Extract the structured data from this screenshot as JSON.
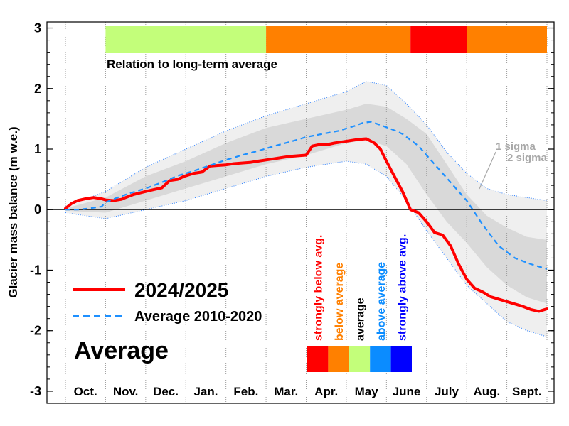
{
  "chart_data": {
    "type": "line",
    "ylabel": "Glacier mass balance (m w.e.)",
    "ylim": [
      -3.2,
      3.1
    ],
    "yticks": [
      -3,
      -2,
      -1,
      0,
      1,
      2,
      3
    ],
    "ytick_labels": [
      "-3",
      "-2",
      "-1",
      "0",
      "1",
      "2",
      "3"
    ],
    "xlim": [
      0,
      12
    ],
    "months": [
      "Oct.",
      "Nov.",
      "Dec.",
      "Jan.",
      "Feb.",
      "Mar.",
      "Apr.",
      "May",
      "June",
      "July",
      "Aug.",
      "Sept."
    ],
    "series": [
      {
        "name": "2024/2025",
        "color": "#ff0000",
        "style": "solid",
        "x": [
          0.0,
          0.15,
          0.3,
          0.5,
          0.7,
          0.9,
          1.0,
          1.2,
          1.4,
          1.5,
          1.7,
          2.0,
          2.2,
          2.4,
          2.6,
          2.8,
          2.95,
          3.2,
          3.4,
          3.6,
          3.8,
          4.0,
          4.2,
          4.4,
          4.6,
          4.8,
          5.0,
          5.2,
          5.4,
          5.6,
          5.8,
          6.0,
          6.15,
          6.3,
          6.5,
          6.7,
          6.9,
          7.1,
          7.3,
          7.5,
          7.7,
          7.85,
          8.0,
          8.2,
          8.4,
          8.6,
          8.8,
          9.0,
          9.2,
          9.4,
          9.6,
          9.8,
          10.0,
          10.2,
          10.4,
          10.6,
          10.8,
          11.0,
          11.2,
          11.4,
          11.6,
          11.8,
          12.0
        ],
        "y": [
          0.02,
          0.1,
          0.15,
          0.18,
          0.2,
          0.18,
          0.16,
          0.15,
          0.17,
          0.2,
          0.25,
          0.3,
          0.33,
          0.36,
          0.48,
          0.5,
          0.55,
          0.6,
          0.62,
          0.72,
          0.73,
          0.74,
          0.76,
          0.77,
          0.78,
          0.8,
          0.82,
          0.84,
          0.86,
          0.88,
          0.89,
          0.9,
          1.05,
          1.07,
          1.07,
          1.1,
          1.12,
          1.14,
          1.16,
          1.17,
          1.1,
          1.0,
          0.8,
          0.55,
          0.3,
          0.0,
          -0.05,
          -0.2,
          -0.38,
          -0.42,
          -0.6,
          -0.9,
          -1.15,
          -1.3,
          -1.36,
          -1.44,
          -1.48,
          -1.52,
          -1.56,
          -1.6,
          -1.65,
          -1.68,
          -1.64
        ]
      },
      {
        "name": "Average 2010-2020",
        "color": "#1e90ff",
        "style": "dashed",
        "x": [
          0.0,
          0.3,
          0.6,
          0.9,
          1.0,
          1.3,
          1.6,
          2.0,
          2.4,
          2.8,
          3.2,
          3.6,
          4.0,
          4.4,
          4.8,
          5.2,
          5.6,
          6.0,
          6.4,
          6.8,
          7.2,
          7.4,
          7.6,
          7.8,
          8.0,
          8.2,
          8.4,
          8.8,
          9.2,
          9.6,
          10.0,
          10.4,
          10.8,
          11.2,
          11.6,
          12.0
        ],
        "y": [
          0.0,
          0.0,
          0.02,
          0.05,
          0.12,
          0.2,
          0.27,
          0.35,
          0.45,
          0.56,
          0.64,
          0.73,
          0.82,
          0.9,
          0.97,
          1.05,
          1.12,
          1.2,
          1.25,
          1.3,
          1.38,
          1.43,
          1.45,
          1.41,
          1.36,
          1.31,
          1.25,
          1.05,
          0.75,
          0.45,
          0.15,
          -0.25,
          -0.6,
          -0.8,
          -0.9,
          -0.98
        ]
      }
    ],
    "bands": {
      "x": [
        0.0,
        1.0,
        2.0,
        3.0,
        4.0,
        5.0,
        6.0,
        7.0,
        7.5,
        8.0,
        8.5,
        9.0,
        9.5,
        10.0,
        10.5,
        11.0,
        11.5,
        12.0
      ],
      "sigma2_upper": [
        0.05,
        0.3,
        0.7,
        1.0,
        1.3,
        1.55,
        1.75,
        1.95,
        2.12,
        2.05,
        1.75,
        1.4,
        0.95,
        0.6,
        0.35,
        0.25,
        0.2,
        0.15
      ],
      "sigma1_upper": [
        0.02,
        0.2,
        0.55,
        0.8,
        1.1,
        1.35,
        1.5,
        1.65,
        1.75,
        1.7,
        1.5,
        1.25,
        0.75,
        0.25,
        -0.1,
        -0.3,
        -0.45,
        -0.5
      ],
      "sigma1_lower": [
        -0.02,
        -0.05,
        0.15,
        0.35,
        0.55,
        0.75,
        0.9,
        1.1,
        1.15,
        1.05,
        0.75,
        0.25,
        -0.2,
        -0.55,
        -0.95,
        -1.25,
        -1.45,
        -1.55
      ],
      "sigma2_lower": [
        -0.05,
        -0.15,
        0.0,
        0.15,
        0.35,
        0.55,
        0.7,
        0.8,
        0.75,
        0.55,
        0.15,
        -0.35,
        -0.8,
        -1.25,
        -1.55,
        -1.85,
        -2.0,
        -2.1
      ],
      "sigma1_label": "1 sigma",
      "sigma2_label": "2 sigma",
      "color_outer": "#efefef",
      "color_inner": "#d9d9d9"
    },
    "relation_bar": {
      "label": "Relation to long-term average",
      "segments": [
        {
          "from": 1.0,
          "to": 5.0,
          "color": "#c3fe7a"
        },
        {
          "from": 5.0,
          "to": 8.6,
          "color": "#ff8000"
        },
        {
          "from": 8.6,
          "to": 10.0,
          "color": "#ff0000"
        },
        {
          "from": 10.0,
          "to": 12.0,
          "color": "#ff8000"
        }
      ]
    },
    "category_legend": [
      {
        "label": "strongly below avg.",
        "color": "#ff0000",
        "text_color": "#ff0000"
      },
      {
        "label": "below average",
        "color": "#ff8000",
        "text_color": "#ff8000"
      },
      {
        "label": "average",
        "color": "#c3fe7a",
        "text_color": "#000000"
      },
      {
        "label": "above average",
        "color": "#0b8cff",
        "text_color": "#0b8cff"
      },
      {
        "label": "strongly above avg.",
        "color": "#0000ff",
        "text_color": "#0000ff"
      }
    ],
    "status_label": "Average",
    "grid": "vertical-dotted-month-boundaries",
    "zero_line": true,
    "legend": {
      "position": "bottom-left"
    }
  }
}
